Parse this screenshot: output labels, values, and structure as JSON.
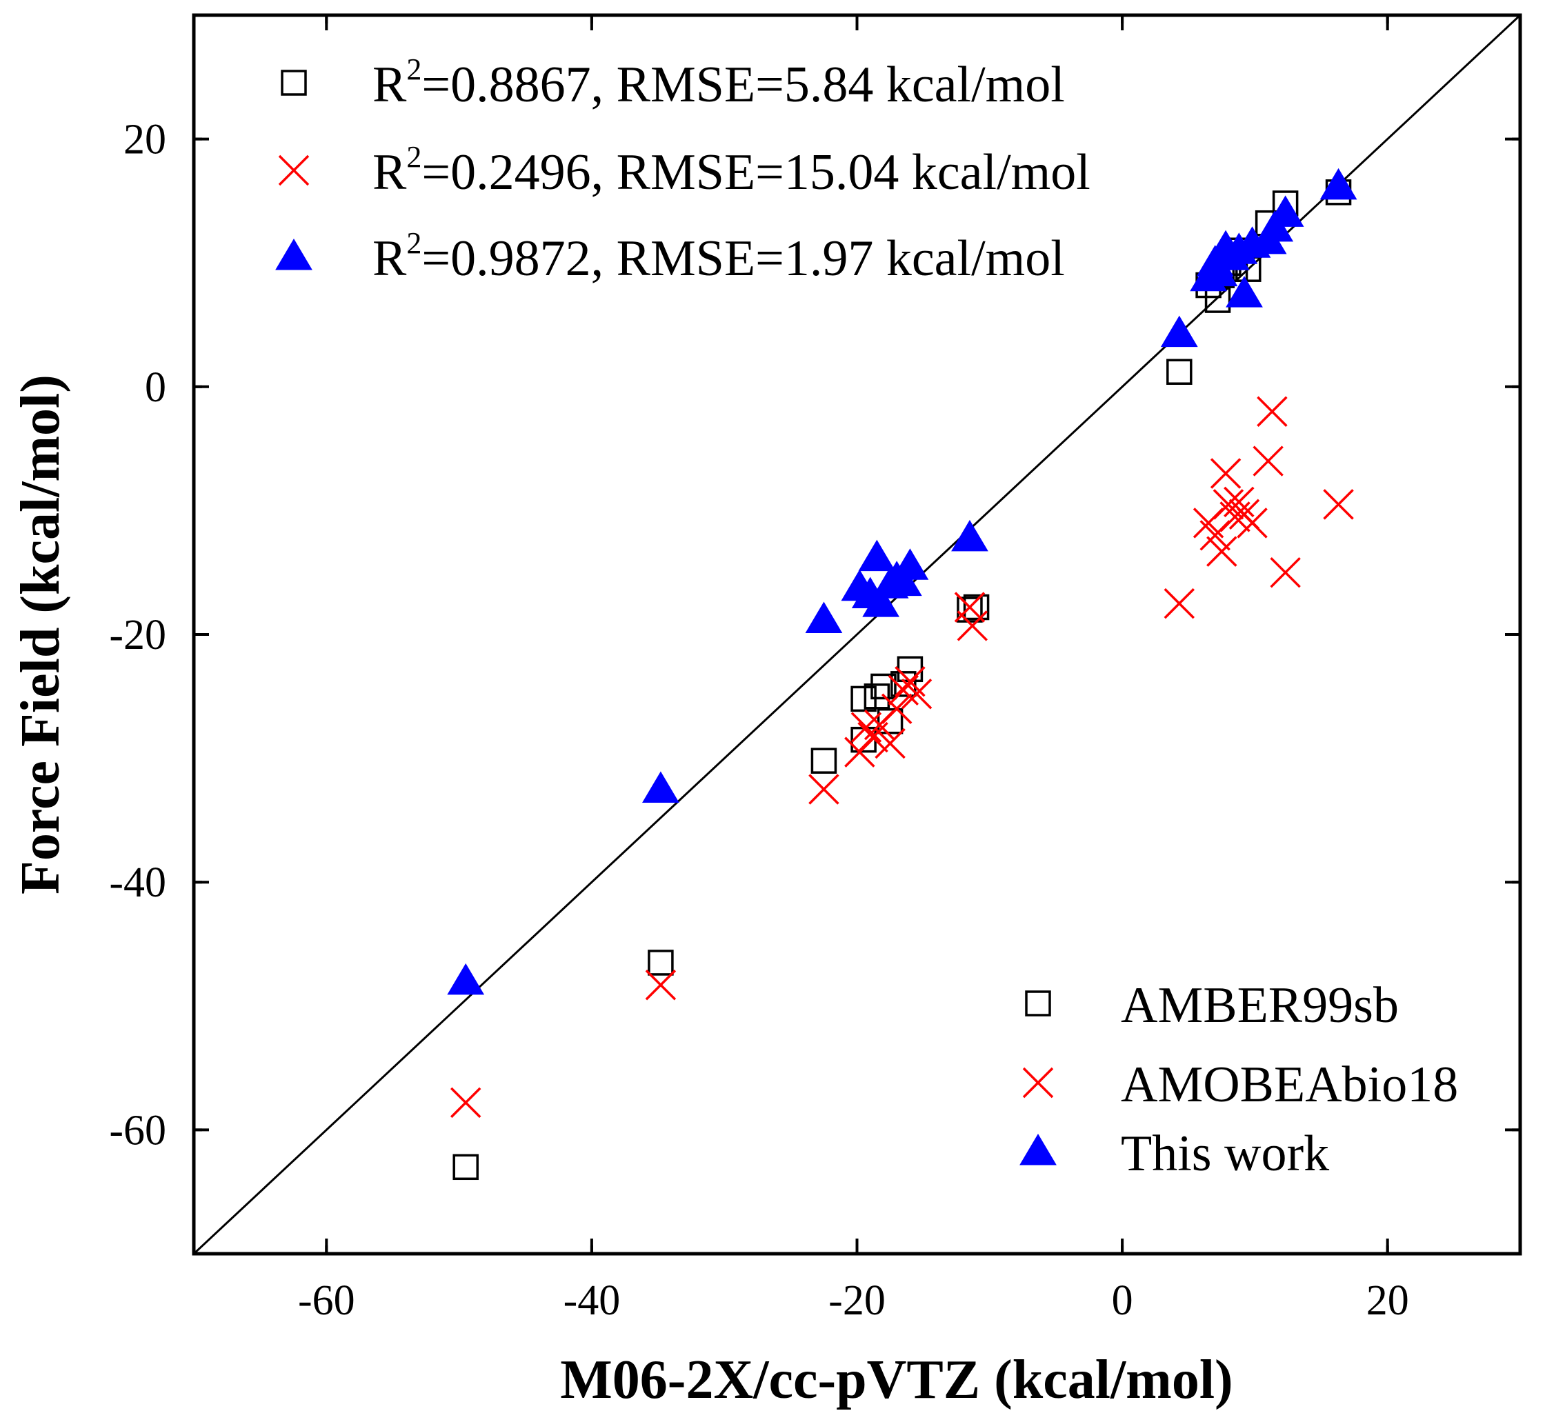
{
  "chart_data": {
    "type": "scatter",
    "title": "",
    "xlabel": "M06-2X/cc-pVTZ (kcal/mol)",
    "ylabel": "Force Field (kcal/mol)",
    "xlim": [
      -70,
      30
    ],
    "ylim": [
      -70,
      30
    ],
    "xticks": [
      -60,
      -40,
      -20,
      0,
      20
    ],
    "yticks": [
      -60,
      -40,
      -20,
      0,
      20
    ],
    "xtick_labels": [
      "-60",
      "-40",
      "-20",
      "0",
      "20"
    ],
    "ytick_labels": [
      "-60",
      "-40",
      "-20",
      "0",
      "20"
    ],
    "reference_line": {
      "label": "y = x",
      "slope": 1,
      "intercept": 0
    },
    "stats": [
      {
        "series": "AMBER99sb",
        "r2_value": "=0.8867, RMSE=5.84 kcal/mol"
      },
      {
        "series": "AMOBEAbio18",
        "r2_value": "=0.2496, RMSE=15.04 kcal/mol"
      },
      {
        "series": "This work",
        "r2_value": "=0.9872, RMSE=1.97 kcal/mol"
      }
    ],
    "stat_prefix": "R",
    "stat_sup": "2",
    "legend_position": "bottom-right",
    "series": [
      {
        "name": "AMBER99sb",
        "marker": "open-square",
        "color": "#000000",
        "points": [
          [
            -49.5,
            -63
          ],
          [
            -34.8,
            -46.5
          ],
          [
            -22.5,
            -30.2
          ],
          [
            -19.5,
            -25.2
          ],
          [
            -19.5,
            -28.5
          ],
          [
            -18.5,
            -25.0
          ],
          [
            -18.0,
            -24.2
          ],
          [
            -17.5,
            -27.0
          ],
          [
            -16.5,
            -24.0
          ],
          [
            -16.0,
            -22.8
          ],
          [
            -11.5,
            -18.0
          ],
          [
            -11.0,
            -17.8
          ],
          [
            4.3,
            1.2
          ],
          [
            6.5,
            8.2
          ],
          [
            7.2,
            7.0
          ],
          [
            7.5,
            9.0
          ],
          [
            8.0,
            10.0
          ],
          [
            8.5,
            9.5
          ],
          [
            9.0,
            11.0
          ],
          [
            9.5,
            9.5
          ],
          [
            11.0,
            13.2
          ],
          [
            12.3,
            14.8
          ],
          [
            16.3,
            15.7
          ]
        ]
      },
      {
        "name": "AMOBEAbio18",
        "marker": "x",
        "color": "#ff0000",
        "points": [
          [
            -49.5,
            -57.8
          ],
          [
            -34.8,
            -48.3
          ],
          [
            -22.5,
            -32.5
          ],
          [
            -19.8,
            -29.5
          ],
          [
            -19.3,
            -27.5
          ],
          [
            -18.8,
            -28.3
          ],
          [
            -18.3,
            -27.3
          ],
          [
            -17.5,
            -28.8
          ],
          [
            -17.0,
            -26.0
          ],
          [
            -16.5,
            -24.5
          ],
          [
            -16.0,
            -23.8
          ],
          [
            -15.5,
            -24.8
          ],
          [
            -11.5,
            -17.8
          ],
          [
            -11.3,
            -19.3
          ],
          [
            4.3,
            -17.5
          ],
          [
            6.5,
            -11.0
          ],
          [
            7.0,
            -12.0
          ],
          [
            7.5,
            -13.3
          ],
          [
            7.8,
            -7.0
          ],
          [
            8.0,
            -9.5
          ],
          [
            8.5,
            -10.5
          ],
          [
            8.8,
            -9.3
          ],
          [
            9.2,
            -10.3
          ],
          [
            9.8,
            -11.0
          ],
          [
            11.0,
            -6.0
          ],
          [
            11.3,
            -2.0
          ],
          [
            12.3,
            -15.0
          ],
          [
            16.3,
            -9.5
          ]
        ]
      },
      {
        "name": "This work",
        "marker": "filled-triangle",
        "color": "#0000ff",
        "points": [
          [
            -49.5,
            -48.0
          ],
          [
            -34.8,
            -32.5
          ],
          [
            -22.5,
            -18.8
          ],
          [
            -19.8,
            -16.2
          ],
          [
            -19.0,
            -16.8
          ],
          [
            -18.5,
            -13.8
          ],
          [
            -18.2,
            -17.5
          ],
          [
            -17.5,
            -16.0
          ],
          [
            -17.0,
            -15.5
          ],
          [
            -16.5,
            -15.8
          ],
          [
            -16.0,
            -14.5
          ],
          [
            -11.5,
            -12.2
          ],
          [
            4.3,
            4.3
          ],
          [
            6.5,
            8.8
          ],
          [
            7.0,
            10.0
          ],
          [
            7.3,
            9.2
          ],
          [
            7.8,
            11.2
          ],
          [
            8.2,
            10.5
          ],
          [
            8.8,
            11.0
          ],
          [
            9.2,
            7.5
          ],
          [
            9.8,
            11.5
          ],
          [
            11.0,
            11.8
          ],
          [
            11.5,
            12.8
          ],
          [
            12.3,
            14.0
          ],
          [
            16.3,
            16.2
          ]
        ]
      }
    ]
  }
}
